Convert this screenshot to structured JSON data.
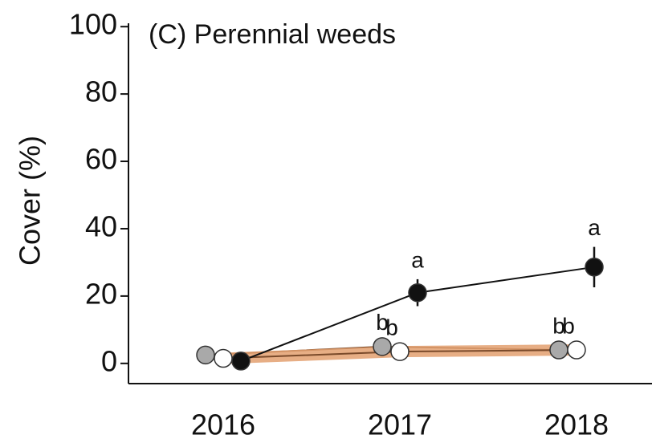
{
  "chart_data": {
    "type": "line",
    "title": "(C) Perennial weeds",
    "y_label": "Cover (%)",
    "categories": [
      "2016",
      "2017",
      "2018"
    ],
    "ylim": [
      -6,
      101
    ],
    "yticks": [
      0,
      20,
      40,
      60,
      80,
      100
    ],
    "series": [
      {
        "color": "#a9a9a9",
        "line_color": "#7a4a2a",
        "values": [
          2.5,
          5,
          4
        ],
        "labels": [
          null,
          "b",
          "b"
        ]
      },
      {
        "color": "#ffffff",
        "line_color": "#e3a070",
        "values": [
          1.5,
          3.5,
          4
        ],
        "labels": [
          null,
          "b",
          "b"
        ]
      },
      {
        "color": "#111111",
        "line_color": "#111111",
        "values": [
          0.7,
          21,
          28.6
        ],
        "errors": [
          1,
          4,
          6
        ],
        "labels": [
          null,
          "a",
          "a"
        ]
      }
    ]
  }
}
